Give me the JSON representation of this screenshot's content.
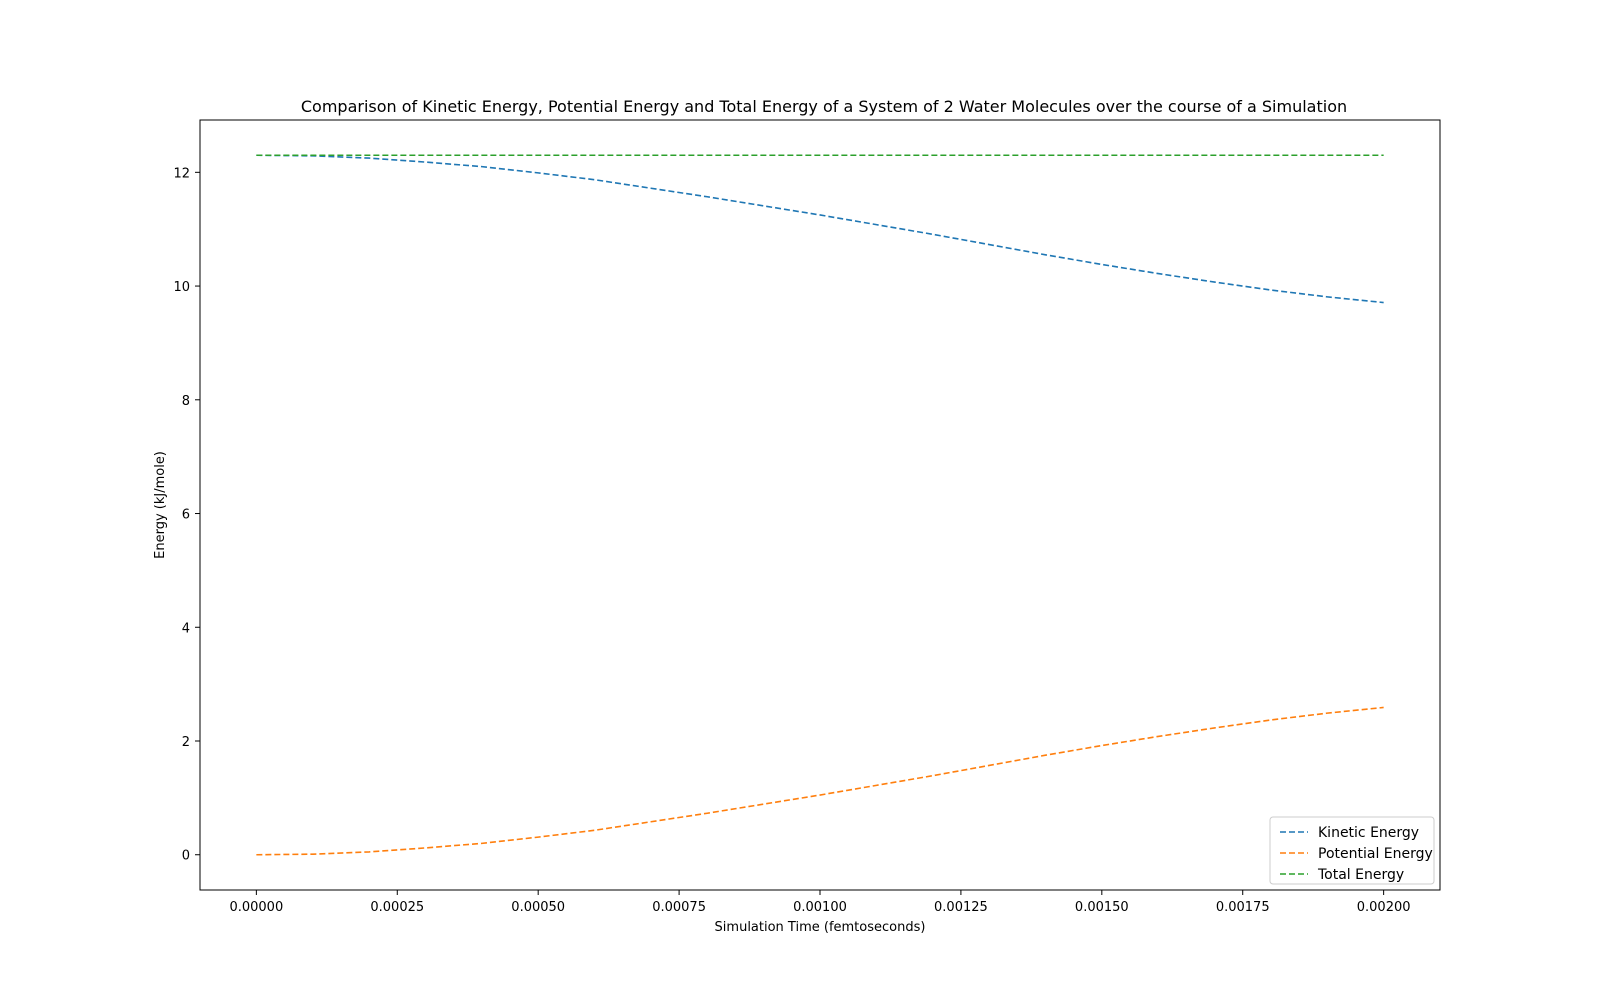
{
  "chart_data": {
    "type": "line",
    "title": "Comparison of Kinetic Energy, Potential Energy and Total Energy of a System of 2 Water Molecules over the course of a Simulation",
    "xlabel": "Simulation Time (femtoseconds)",
    "ylabel": "Energy (kJ/mole)",
    "xlim": [
      -0.0001,
      0.0021
    ],
    "ylim": [
      -0.62,
      12.92
    ],
    "x_ticks": [
      "0.00000",
      "0.00025",
      "0.00050",
      "0.00075",
      "0.00100",
      "0.00125",
      "0.00150",
      "0.00175",
      "0.00200"
    ],
    "y_ticks": [
      "0",
      "2",
      "4",
      "6",
      "8",
      "10",
      "12"
    ],
    "grid": false,
    "legend_position": "lower-right",
    "x": [
      0,
      0.0001,
      0.0002,
      0.0003,
      0.0004,
      0.0005,
      0.0006,
      0.0007,
      0.0008,
      0.0009,
      0.001,
      0.0011,
      0.0012,
      0.0013,
      0.0014,
      0.0015,
      0.0016,
      0.0017,
      0.0018,
      0.0019,
      0.002
    ],
    "series": [
      {
        "name": "Kinetic Energy",
        "color": "#1f77b4",
        "line_style": "dashed",
        "values": [
          12.3,
          12.29,
          12.25,
          12.18,
          12.1,
          11.99,
          11.87,
          11.72,
          11.57,
          11.41,
          11.25,
          11.08,
          10.91,
          10.73,
          10.55,
          10.38,
          10.22,
          10.07,
          9.93,
          9.81,
          9.71
        ]
      },
      {
        "name": "Potential Energy",
        "color": "#ff7f0e",
        "line_style": "dashed",
        "values": [
          0.0,
          0.01,
          0.05,
          0.12,
          0.2,
          0.31,
          0.43,
          0.58,
          0.73,
          0.89,
          1.05,
          1.22,
          1.39,
          1.57,
          1.75,
          1.92,
          2.08,
          2.23,
          2.37,
          2.49,
          2.59
        ]
      },
      {
        "name": "Total Energy",
        "color": "#2ca02c",
        "line_style": "dashed",
        "values": [
          12.3,
          12.3,
          12.3,
          12.3,
          12.3,
          12.3,
          12.3,
          12.3,
          12.3,
          12.3,
          12.3,
          12.3,
          12.3,
          12.3,
          12.3,
          12.3,
          12.3,
          12.3,
          12.3,
          12.3,
          12.3
        ]
      }
    ]
  }
}
